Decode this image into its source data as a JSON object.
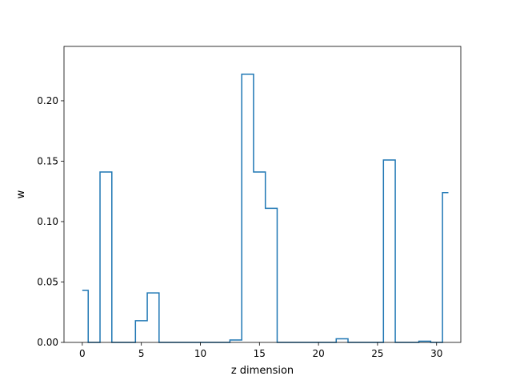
{
  "chart_data": {
    "type": "line",
    "drawstyle": "steps-mid",
    "title": "",
    "xlabel": "z dimension",
    "ylabel": "w",
    "x": [
      0,
      1,
      2,
      3,
      4,
      5,
      6,
      7,
      8,
      9,
      10,
      11,
      12,
      13,
      14,
      15,
      16,
      17,
      18,
      19,
      20,
      21,
      22,
      23,
      24,
      25,
      26,
      27,
      28,
      29,
      30,
      31
    ],
    "series": [
      {
        "color": "#1f77b4",
        "values": [
          0.043,
          0.0,
          0.141,
          0.0,
          0.0,
          0.018,
          0.041,
          0.0,
          0.0,
          0.0,
          0.0,
          0.0,
          0.0,
          0.002,
          0.222,
          0.141,
          0.111,
          0.0,
          0.0,
          0.0,
          0.0,
          0.0,
          0.003,
          0.0,
          0.0,
          0.0,
          0.151,
          0.0,
          0.0,
          0.001,
          0.0,
          0.124
        ]
      }
    ],
    "xlim": [
      -1.55,
      32.05
    ],
    "ylim": [
      0.0,
      0.245
    ],
    "xticks": [
      0,
      5,
      10,
      15,
      20,
      25,
      30
    ],
    "xtick_labels": [
      "0",
      "5",
      "10",
      "15",
      "20",
      "25",
      "30"
    ],
    "yticks": [
      0.0,
      0.05,
      0.1,
      0.15,
      0.2
    ],
    "ytick_labels": [
      "0.00",
      "0.05",
      "0.10",
      "0.15",
      "0.20"
    ],
    "grid": false,
    "legend": "none"
  }
}
